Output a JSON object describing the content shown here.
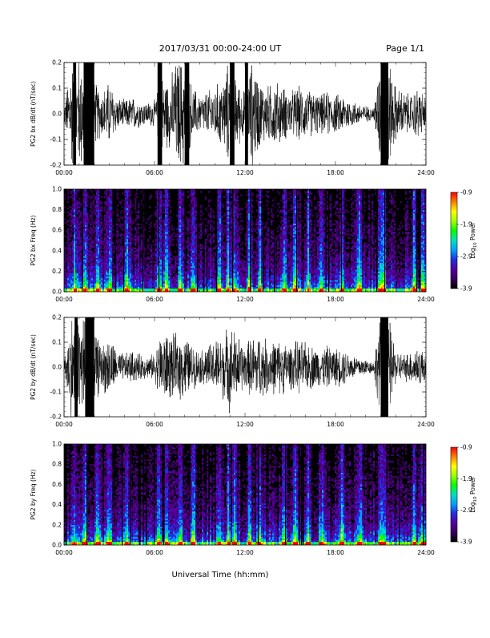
{
  "header": {
    "date_range": "2017/03/31   00:00-24:00 UT",
    "page": "Page 1/1"
  },
  "xlabel": "Universal Time (hh:mm)",
  "x_ticks": [
    "00:00",
    "06:00",
    "12:00",
    "18:00",
    "24:00"
  ],
  "colors": {
    "trace": "#000000",
    "colormap": [
      "#000000",
      "#3a0060",
      "#5500a0",
      "#2030e0",
      "#00a0ff",
      "#00e0c0",
      "#00ff00",
      "#a0ff00",
      "#ffff00",
      "#ff8000",
      "#ff0000"
    ]
  },
  "chart_data": [
    {
      "type": "line",
      "ylabel": "PG2 bx dB/dt (nT/sec)",
      "ylim": [
        -0.2,
        0.2
      ],
      "y_ticks": [
        "-0.2",
        "-0.1",
        "0.0",
        "0.1",
        "0.2"
      ],
      "xlim_hours": [
        0,
        24
      ],
      "x_hours": [
        0,
        0.5,
        1,
        1.5,
        2,
        2.5,
        3,
        3.5,
        4,
        4.5,
        5,
        5.5,
        6,
        6.5,
        7,
        7.5,
        8,
        8.5,
        9,
        9.5,
        10,
        10.5,
        11,
        11.5,
        12,
        12.5,
        13,
        13.5,
        14,
        14.5,
        15,
        15.5,
        16,
        16.5,
        17,
        17.5,
        18,
        18.5,
        19,
        19.5,
        20,
        20.5,
        21,
        21.5,
        22,
        22.5,
        23,
        23.5,
        24
      ],
      "amplitude": [
        0.03,
        0.2,
        0.2,
        0.2,
        0.12,
        0.08,
        0.12,
        0.06,
        0.05,
        0.06,
        0.05,
        0.04,
        0.05,
        0.14,
        0.12,
        0.2,
        0.2,
        0.1,
        0.07,
        0.08,
        0.1,
        0.12,
        0.2,
        0.12,
        0.08,
        0.2,
        0.12,
        0.1,
        0.12,
        0.1,
        0.08,
        0.1,
        0.09,
        0.08,
        0.07,
        0.08,
        0.07,
        0.07,
        0.05,
        0.04,
        0.03,
        0.02,
        0.2,
        0.2,
        0.1,
        0.08,
        0.07,
        0.1,
        0.06
      ],
      "saturated_bands_hours": [
        [
          0.6,
          0.8
        ],
        [
          1.3,
          2.0
        ],
        [
          6.2,
          6.5
        ],
        [
          8.0,
          8.3
        ],
        [
          11.0,
          11.3
        ],
        [
          12.0,
          12.2
        ],
        [
          21.0,
          21.5
        ]
      ]
    },
    {
      "type": "heatmap",
      "ylabel": "PG2 bx Freq (Hz)",
      "ylim": [
        0.0,
        1.0
      ],
      "y_ticks": [
        "0.0",
        "0.2",
        "0.4",
        "0.6",
        "0.8",
        "1.0"
      ],
      "colorbar": {
        "label": "Log10 Power",
        "min": -3.9,
        "max": -0.9,
        "ticks": [
          "-0.9",
          "-1.9",
          "-2.9",
          "-3.9"
        ]
      },
      "bright_columns_hours": [
        0.7,
        1.4,
        2.2,
        3.0,
        4.2,
        6.3,
        6.8,
        7.7,
        8.6,
        10.3,
        10.9,
        11.3,
        12.3,
        13.0,
        14.6,
        15.3,
        16.2,
        17.1,
        18.4,
        19.6,
        21.0,
        21.2,
        23.2,
        23.8
      ]
    },
    {
      "type": "line",
      "ylabel": "PG2 by dB/dt (nT/sec)",
      "ylim": [
        -0.2,
        0.2
      ],
      "y_ticks": [
        "-0.2",
        "-0.1",
        "0.0",
        "0.1",
        "0.2"
      ],
      "xlim_hours": [
        0,
        24
      ],
      "x_hours": [
        0,
        0.5,
        1,
        1.5,
        2,
        2.5,
        3,
        3.5,
        4,
        4.5,
        5,
        5.5,
        6,
        6.5,
        7,
        7.5,
        8,
        8.5,
        9,
        9.5,
        10,
        10.5,
        11,
        11.5,
        12,
        12.5,
        13,
        13.5,
        14,
        14.5,
        15,
        15.5,
        16,
        16.5,
        17,
        17.5,
        18,
        18.5,
        19,
        19.5,
        20,
        20.5,
        21,
        21.5,
        22,
        22.5,
        23,
        23.5,
        24
      ],
      "amplitude": [
        0.03,
        0.2,
        0.2,
        0.2,
        0.14,
        0.08,
        0.12,
        0.06,
        0.05,
        0.06,
        0.05,
        0.04,
        0.05,
        0.14,
        0.12,
        0.12,
        0.12,
        0.08,
        0.06,
        0.08,
        0.1,
        0.12,
        0.16,
        0.12,
        0.08,
        0.12,
        0.12,
        0.1,
        0.1,
        0.1,
        0.08,
        0.1,
        0.09,
        0.08,
        0.07,
        0.08,
        0.07,
        0.07,
        0.05,
        0.04,
        0.03,
        0.02,
        0.2,
        0.2,
        0.06,
        0.05,
        0.06,
        0.08,
        0.05
      ],
      "saturated_bands_hours": [
        [
          0.7,
          0.9
        ],
        [
          1.4,
          2.0
        ],
        [
          21.0,
          21.5
        ]
      ]
    },
    {
      "type": "heatmap",
      "ylabel": "PG2 by Freq (Hz)",
      "ylim": [
        0.0,
        1.0
      ],
      "y_ticks": [
        "0.0",
        "0.2",
        "0.4",
        "0.6",
        "0.8",
        "1.0"
      ],
      "colorbar": {
        "label": "Log10 Power",
        "min": -3.9,
        "max": -0.9,
        "ticks": [
          "-0.9",
          "-1.9",
          "-2.9",
          "-3.9"
        ]
      },
      "bright_columns_hours": [
        0.7,
        1.4,
        2.2,
        3.0,
        4.2,
        6.3,
        6.8,
        7.7,
        8.6,
        10.3,
        10.9,
        11.3,
        12.3,
        13.0,
        14.6,
        15.3,
        16.2,
        17.1,
        18.4,
        19.6,
        21.0,
        21.2,
        23.2,
        23.8
      ]
    }
  ]
}
